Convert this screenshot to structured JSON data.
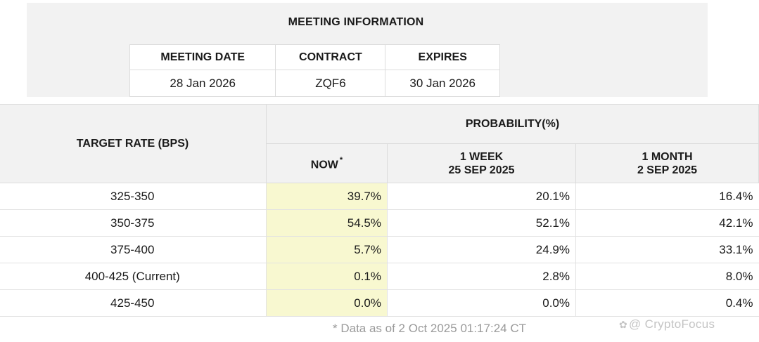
{
  "meeting_info": {
    "title": "MEETING INFORMATION",
    "headers": [
      "MEETING DATE",
      "CONTRACT",
      "EXPIRES"
    ],
    "values": [
      "28 Jan 2026",
      "ZQF6",
      "30 Jan 2026"
    ]
  },
  "probability_table": {
    "rate_header": "TARGET RATE (BPS)",
    "group_header": "PROBABILITY(%)",
    "columns": [
      {
        "label": "NOW",
        "mark": "*",
        "sub": ""
      },
      {
        "label": "1 WEEK",
        "sub": "25 SEP 2025"
      },
      {
        "label": "1 MONTH",
        "sub": "2 SEP 2025"
      }
    ],
    "rows": [
      {
        "rate": "325-350",
        "now": "39.7%",
        "week": "20.1%",
        "month": "16.4%"
      },
      {
        "rate": "350-375",
        "now": "54.5%",
        "week": "52.1%",
        "month": "42.1%"
      },
      {
        "rate": "375-400",
        "now": "5.7%",
        "week": "24.9%",
        "month": "33.1%"
      },
      {
        "rate": "400-425 (Current)",
        "now": "0.1%",
        "week": "2.8%",
        "month": "8.0%"
      },
      {
        "rate": "425-450",
        "now": "0.0%",
        "week": "0.0%",
        "month": "0.4%"
      }
    ]
  },
  "footnote": "* Data as of 2 Oct 2025 01:17:24 CT",
  "watermark": {
    "icon": "logo-icon",
    "text": "@ CryptoFocus"
  },
  "colors": {
    "header_bg": "#f2f2f2",
    "now_highlight": "#f8f8d0",
    "border": "#dcdcdc"
  }
}
